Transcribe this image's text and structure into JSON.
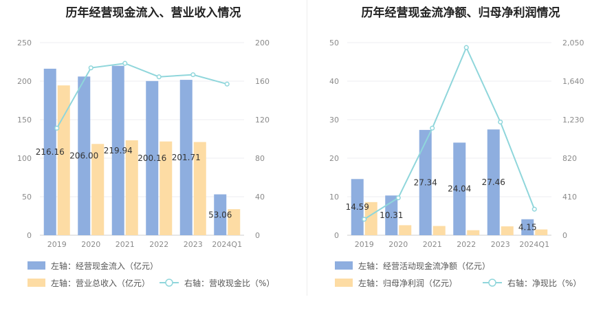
{
  "charts": [
    {
      "title": "历年经营现金流入、营业收入情况",
      "legend": [
        "左轴：经营现金流入（亿元）",
        "左轴：营业总收入（亿元）",
        "右轴：营收现金比（%）"
      ]
    },
    {
      "title": "历年经营现金流净额、归母净利润情况",
      "legend": [
        "左轴：经营活动现金流净额（亿元）",
        "左轴：归母净利润（亿元）",
        "右轴：净现比（%）"
      ]
    }
  ],
  "chart_data": [
    {
      "type": "bar",
      "title": "历年经营现金流入、营业收入情况",
      "categories": [
        "2019",
        "2020",
        "2021",
        "2022",
        "2023",
        "2024Q1"
      ],
      "series": [
        {
          "name": "左轴：经营现金流入（亿元）",
          "axis": "left",
          "type": "bar",
          "color": "#8eaedf",
          "values": [
            216.16,
            206.0,
            219.94,
            200.16,
            201.71,
            53.06
          ],
          "labels": [
            "216.16",
            "206.00",
            "219.94",
            "200.16",
            "201.71",
            "53.06"
          ]
        },
        {
          "name": "左轴：营业总收入（亿元）",
          "axis": "left",
          "type": "bar",
          "color": "#fddca4",
          "values": [
            194.5,
            118.5,
            123.2,
            121.7,
            121.0,
            33.8
          ]
        },
        {
          "name": "右轴：营收现金比（%）",
          "axis": "right",
          "type": "line",
          "color": "#8fd6db",
          "values": [
            111.2,
            173.8,
            178.5,
            164.5,
            166.7,
            157.0
          ]
        }
      ],
      "left_axis": {
        "min": 0,
        "max": 250,
        "ticks": [
          0,
          50,
          100,
          150,
          200,
          250
        ]
      },
      "right_axis": {
        "min": 0,
        "max": 200,
        "ticks": [
          0,
          40,
          80,
          120,
          160,
          200
        ]
      },
      "grid": true,
      "legend_position": "bottom-left"
    },
    {
      "type": "bar",
      "title": "历年经营现金流净额、归母净利润情况",
      "categories": [
        "2019",
        "2020",
        "2021",
        "2022",
        "2023",
        "2024Q1"
      ],
      "series": [
        {
          "name": "左轴：经营活动现金流净额（亿元）",
          "axis": "left",
          "type": "bar",
          "color": "#8eaedf",
          "values": [
            14.59,
            10.31,
            27.34,
            24.04,
            27.46,
            4.15
          ],
          "labels": [
            "14.59",
            "10.31",
            "27.34",
            "24.04",
            "27.46",
            "4.15"
          ]
        },
        {
          "name": "左轴：归母净利润（亿元）",
          "axis": "left",
          "type": "bar",
          "color": "#fddca4",
          "values": [
            8.6,
            2.6,
            2.4,
            1.3,
            2.3,
            1.5
          ]
        },
        {
          "name": "右轴：净现比（%）",
          "axis": "right",
          "type": "line",
          "color": "#8fd6db",
          "values": [
            170,
            398,
            1140,
            1998,
            1205,
            277
          ]
        }
      ],
      "left_axis": {
        "min": 0,
        "max": 50,
        "ticks": [
          0,
          10,
          20,
          30,
          40,
          50
        ]
      },
      "right_axis": {
        "min": 0,
        "max": 2050,
        "ticks": [
          "0",
          "410",
          "820",
          "1,230",
          "1,640",
          "2,050"
        ]
      },
      "grid": true,
      "legend_position": "bottom-left"
    }
  ]
}
